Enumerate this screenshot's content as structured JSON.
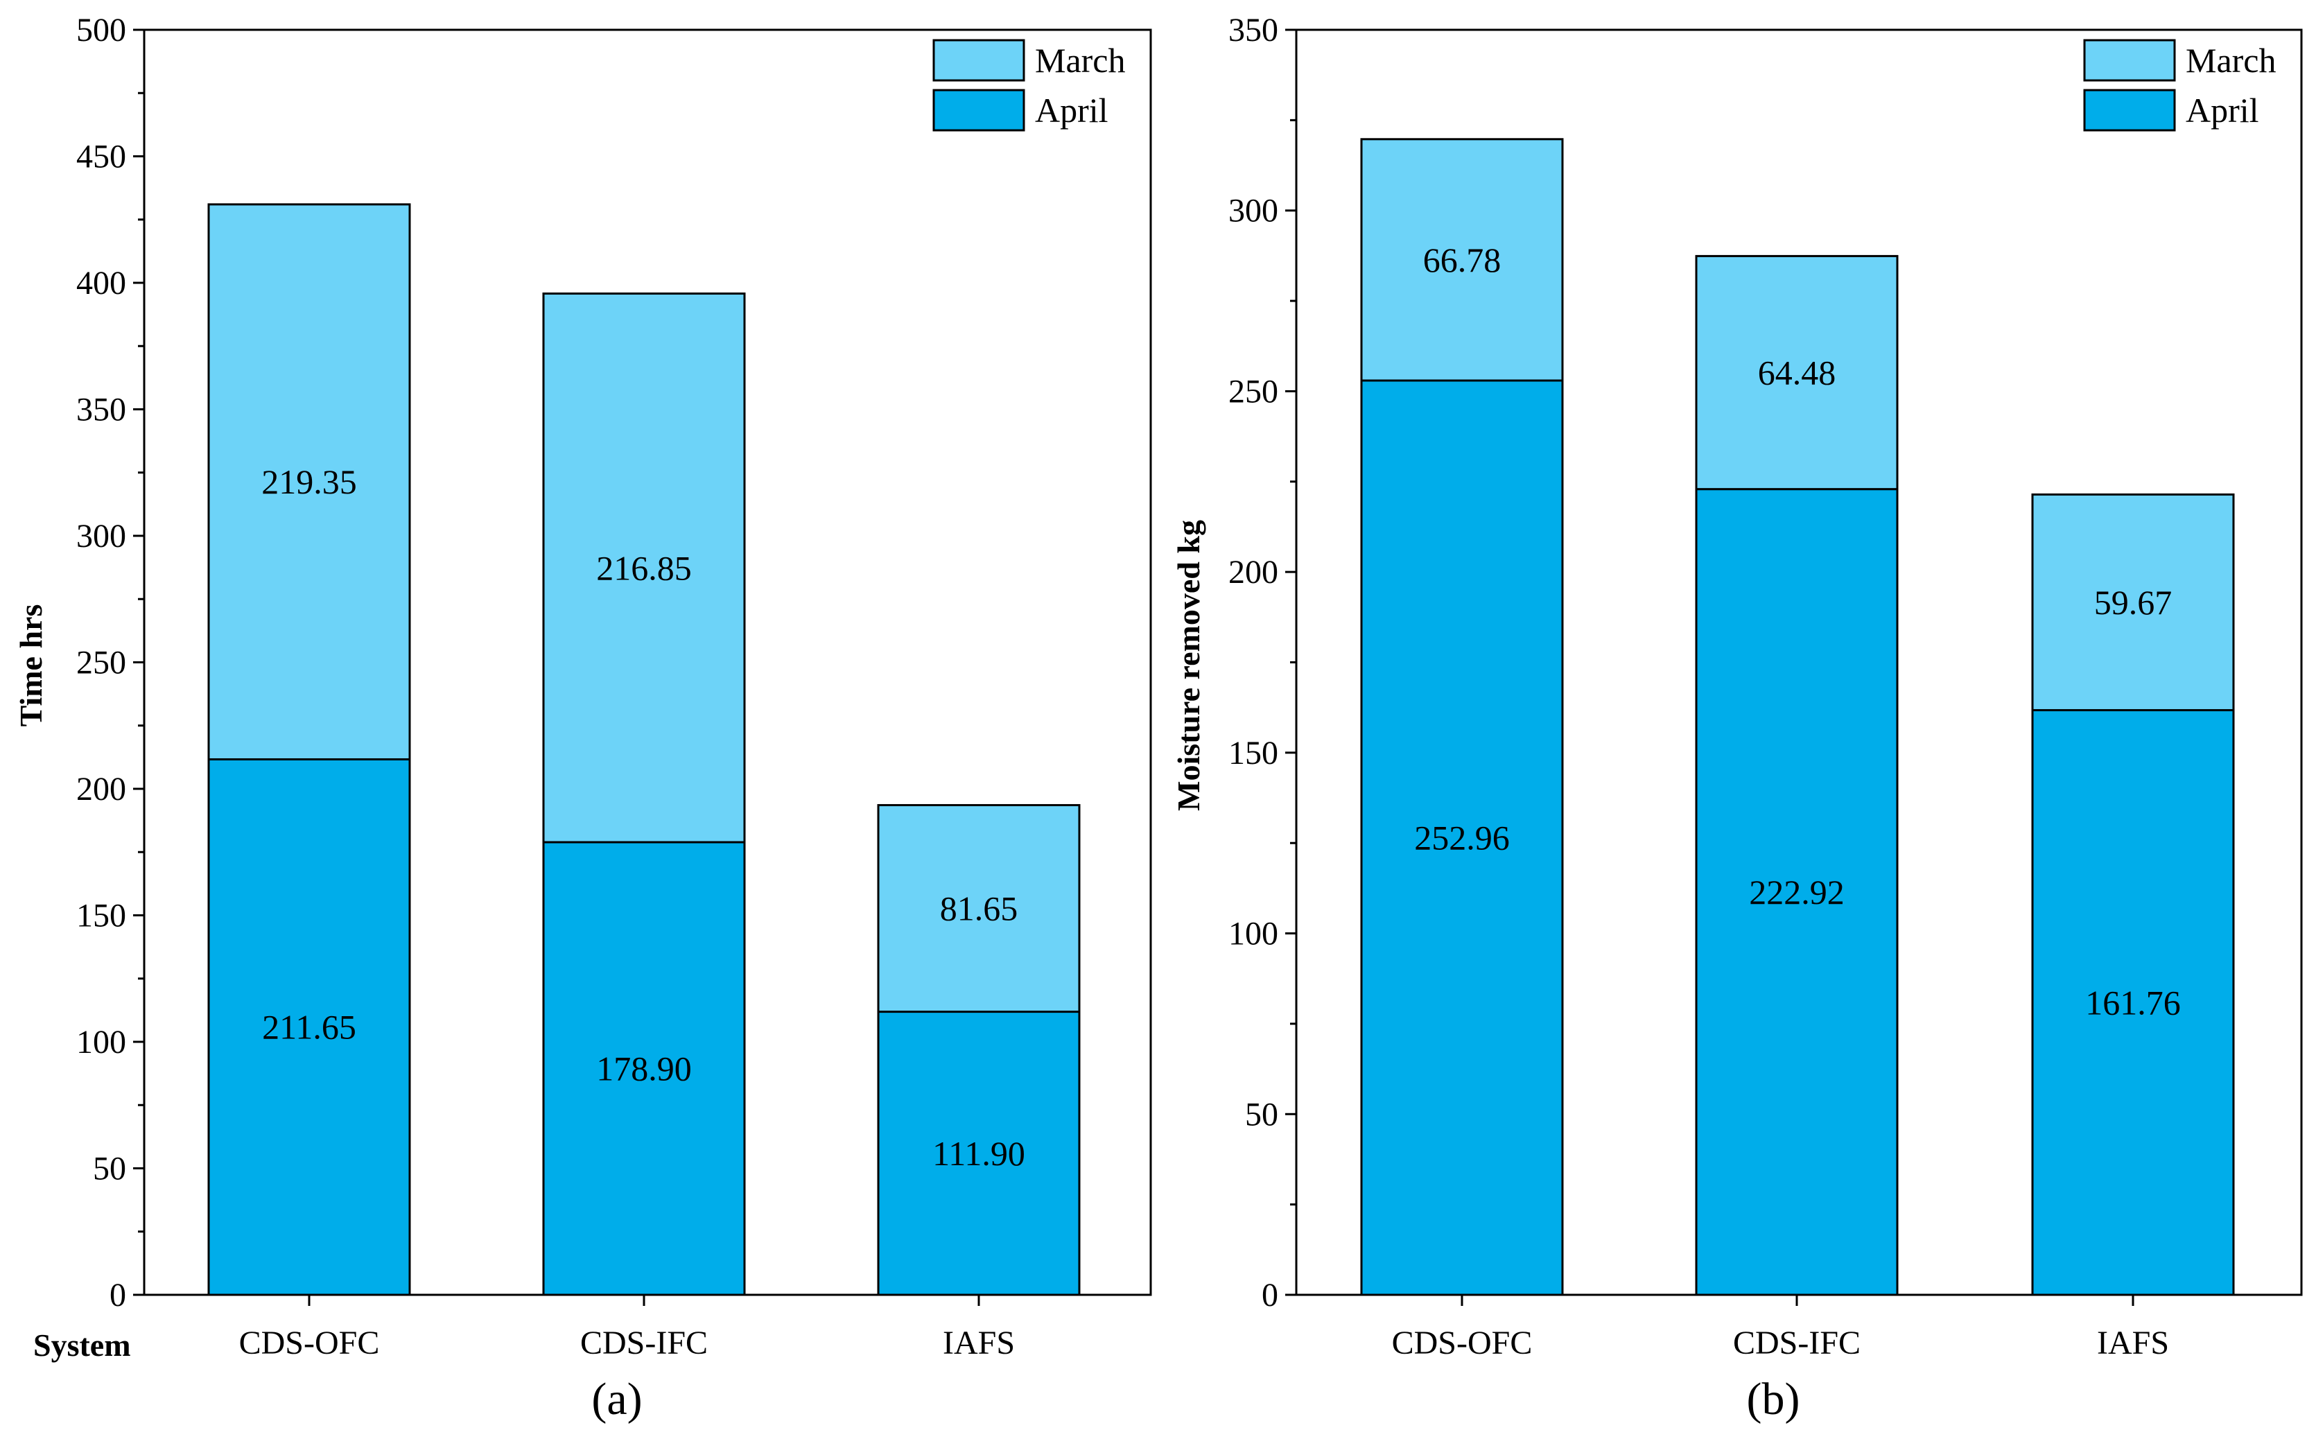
{
  "figure": {
    "system_label": "System"
  },
  "colors": {
    "march": "#6dd3f8",
    "april": "#00adea",
    "stroke": "#000000"
  },
  "chart_data": [
    {
      "type": "bar",
      "stacked": true,
      "panel": "(a)",
      "title": "",
      "xlabel": "",
      "ylabel": "Time hrs",
      "ylim": [
        0,
        500
      ],
      "ytick_major": 50,
      "categories": [
        "CDS-OFC",
        "CDS-IFC",
        "IAFS"
      ],
      "series": [
        {
          "name": "April",
          "values": [
            211.65,
            178.9,
            111.9
          ],
          "labels": [
            "211.65",
            "178.90",
            "111.90"
          ]
        },
        {
          "name": "March",
          "values": [
            219.35,
            216.85,
            81.65
          ],
          "labels": [
            "219.35",
            "216.85",
            "81.65"
          ]
        }
      ],
      "legend": {
        "position": "top-right",
        "entries": [
          "March",
          "April"
        ]
      }
    },
    {
      "type": "bar",
      "stacked": true,
      "panel": "(b)",
      "title": "",
      "xlabel": "",
      "ylabel": "Moisture removed  kg",
      "ylim": [
        0,
        350
      ],
      "ytick_major": 50,
      "categories": [
        "CDS-OFC",
        "CDS-IFC",
        "IAFS"
      ],
      "series": [
        {
          "name": "April",
          "values": [
            252.96,
            222.92,
            161.76
          ],
          "labels": [
            "252.96",
            "222.92",
            "161.76"
          ]
        },
        {
          "name": "March",
          "values": [
            66.78,
            64.48,
            59.67
          ],
          "labels": [
            "66.78",
            "64.48",
            "59.67"
          ]
        }
      ],
      "legend": {
        "position": "top-right",
        "entries": [
          "March",
          "April"
        ]
      }
    }
  ]
}
